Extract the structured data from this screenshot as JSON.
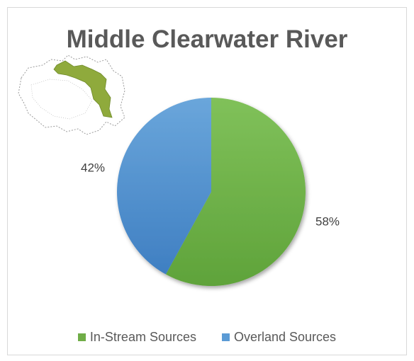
{
  "chart_data": {
    "type": "pie",
    "title": "Middle Clearwater River",
    "slices": [
      {
        "name": "In-Stream Sources",
        "value": 58,
        "label": "58%",
        "color": "#70ad47"
      },
      {
        "name": "Overland Sources",
        "value": 42,
        "label": "42%",
        "color": "#5b9bd5"
      }
    ],
    "legend_position": "bottom",
    "has_inset_map": true,
    "inset_map_highlight_color": "#8faa3c"
  }
}
